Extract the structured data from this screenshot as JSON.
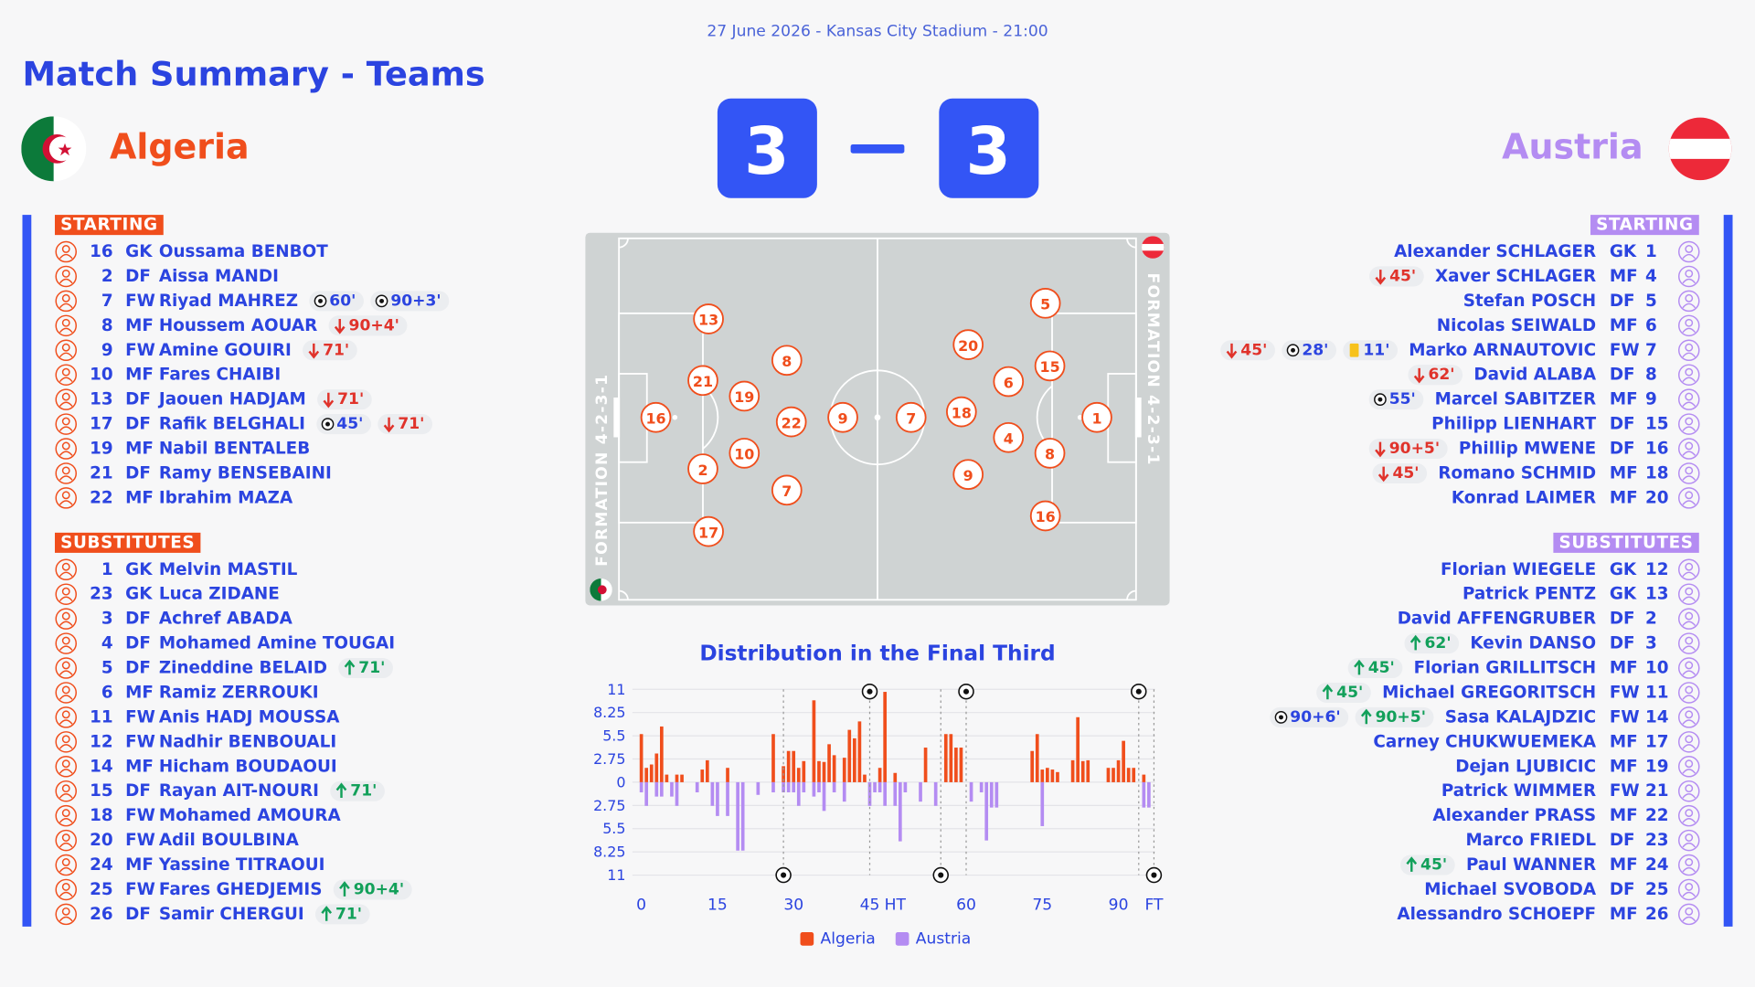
{
  "header": {
    "info": "27 June 2026 - Kansas City Stadium - 21:00",
    "title": "Match Summary - Teams"
  },
  "home": {
    "name": "Algeria",
    "score": 3,
    "starting_label": "STARTING",
    "subs_label": "SUBSTITUTES",
    "starting": [
      {
        "number": 16,
        "pos": "GK",
        "name": "Oussama BENBOT",
        "events": []
      },
      {
        "number": 2,
        "pos": "DF",
        "name": "Aissa MANDI",
        "events": []
      },
      {
        "number": 7,
        "pos": "FW",
        "name": "Riyad MAHREZ",
        "events": [
          {
            "type": "goal",
            "label": "60'"
          },
          {
            "type": "goal",
            "label": "90+3'"
          }
        ]
      },
      {
        "number": 8,
        "pos": "MF",
        "name": "Houssem AOUAR",
        "events": [
          {
            "type": "sub_off",
            "label": "90+4'"
          }
        ]
      },
      {
        "number": 9,
        "pos": "FW",
        "name": "Amine GOUIRI",
        "events": [
          {
            "type": "sub_off",
            "label": "71'"
          }
        ]
      },
      {
        "number": 10,
        "pos": "MF",
        "name": "Fares CHAIBI",
        "events": []
      },
      {
        "number": 13,
        "pos": "DF",
        "name": "Jaouen HADJAM",
        "events": [
          {
            "type": "sub_off",
            "label": "71'"
          }
        ]
      },
      {
        "number": 17,
        "pos": "DF",
        "name": "Rafik BELGHALI",
        "events": [
          {
            "type": "goal",
            "label": "45'"
          },
          {
            "type": "sub_off",
            "label": "71'"
          }
        ]
      },
      {
        "number": 19,
        "pos": "MF",
        "name": "Nabil BENTALEB",
        "events": []
      },
      {
        "number": 21,
        "pos": "DF",
        "name": "Ramy BENSEBAINI",
        "events": []
      },
      {
        "number": 22,
        "pos": "MF",
        "name": "Ibrahim MAZA",
        "events": []
      }
    ],
    "substitutes": [
      {
        "number": 1,
        "pos": "GK",
        "name": "Melvin MASTIL",
        "events": []
      },
      {
        "number": 23,
        "pos": "GK",
        "name": "Luca ZIDANE",
        "events": []
      },
      {
        "number": 3,
        "pos": "DF",
        "name": "Achref ABADA",
        "events": []
      },
      {
        "number": 4,
        "pos": "DF",
        "name": "Mohamed Amine TOUGAI",
        "events": []
      },
      {
        "number": 5,
        "pos": "DF",
        "name": "Zineddine BELAID",
        "events": [
          {
            "type": "sub_on",
            "label": "71'"
          }
        ]
      },
      {
        "number": 6,
        "pos": "MF",
        "name": "Ramiz ZERROUKI",
        "events": []
      },
      {
        "number": 11,
        "pos": "FW",
        "name": "Anis HADJ MOUSSA",
        "events": []
      },
      {
        "number": 12,
        "pos": "FW",
        "name": "Nadhir BENBOUALI",
        "events": []
      },
      {
        "number": 14,
        "pos": "MF",
        "name": "Hicham BOUDAOUI",
        "events": []
      },
      {
        "number": 15,
        "pos": "DF",
        "name": "Rayan AIT-NOURI",
        "events": [
          {
            "type": "sub_on",
            "label": "71'"
          }
        ]
      },
      {
        "number": 18,
        "pos": "FW",
        "name": "Mohamed AMOURA",
        "events": []
      },
      {
        "number": 20,
        "pos": "FW",
        "name": "Adil BOULBINA",
        "events": []
      },
      {
        "number": 24,
        "pos": "MF",
        "name": "Yassine TITRAOUI",
        "events": []
      },
      {
        "number": 25,
        "pos": "FW",
        "name": "Fares GHEDJEMIS",
        "events": [
          {
            "type": "sub_on",
            "label": "90+4'"
          }
        ]
      },
      {
        "number": 26,
        "pos": "DF",
        "name": "Samir CHERGUI",
        "events": [
          {
            "type": "sub_on",
            "label": "71'"
          }
        ]
      }
    ]
  },
  "away": {
    "name": "Austria",
    "score": 3,
    "starting_label": "STARTING",
    "subs_label": "SUBSTITUTES",
    "starting": [
      {
        "number": 1,
        "pos": "GK",
        "name": "Alexander SCHLAGER",
        "events": []
      },
      {
        "number": 4,
        "pos": "MF",
        "name": "Xaver SCHLAGER",
        "events": [
          {
            "type": "sub_off",
            "label": "45'"
          }
        ]
      },
      {
        "number": 5,
        "pos": "DF",
        "name": "Stefan POSCH",
        "events": []
      },
      {
        "number": 6,
        "pos": "MF",
        "name": "Nicolas SEIWALD",
        "events": []
      },
      {
        "number": 7,
        "pos": "FW",
        "name": "Marko ARNAUTOVIC",
        "events": [
          {
            "type": "sub_off",
            "label": "45'"
          },
          {
            "type": "goal",
            "label": "28'"
          },
          {
            "type": "yellow",
            "label": "11'"
          }
        ]
      },
      {
        "number": 8,
        "pos": "DF",
        "name": "David ALABA",
        "events": [
          {
            "type": "sub_off",
            "label": "62'"
          }
        ]
      },
      {
        "number": 9,
        "pos": "MF",
        "name": "Marcel SABITZER",
        "events": [
          {
            "type": "goal",
            "label": "55'"
          }
        ]
      },
      {
        "number": 15,
        "pos": "DF",
        "name": "Philipp LIENHART",
        "events": []
      },
      {
        "number": 16,
        "pos": "DF",
        "name": "Phillip MWENE",
        "events": [
          {
            "type": "sub_off",
            "label": "90+5'"
          }
        ]
      },
      {
        "number": 18,
        "pos": "MF",
        "name": "Romano SCHMID",
        "events": [
          {
            "type": "sub_off",
            "label": "45'"
          }
        ]
      },
      {
        "number": 20,
        "pos": "MF",
        "name": "Konrad LAIMER",
        "events": []
      }
    ],
    "substitutes": [
      {
        "number": 12,
        "pos": "GK",
        "name": "Florian WIEGELE",
        "events": []
      },
      {
        "number": 13,
        "pos": "GK",
        "name": "Patrick PENTZ",
        "events": []
      },
      {
        "number": 2,
        "pos": "DF",
        "name": "David AFFENGRUBER",
        "events": []
      },
      {
        "number": 3,
        "pos": "DF",
        "name": "Kevin DANSO",
        "events": [
          {
            "type": "sub_on",
            "label": "62'"
          }
        ]
      },
      {
        "number": 10,
        "pos": "MF",
        "name": "Florian GRILLITSCH",
        "events": [
          {
            "type": "sub_on",
            "label": "45'"
          }
        ]
      },
      {
        "number": 11,
        "pos": "FW",
        "name": "Michael GREGORITSCH",
        "events": [
          {
            "type": "sub_on",
            "label": "45'"
          }
        ]
      },
      {
        "number": 14,
        "pos": "FW",
        "name": "Sasa KALAJDZIC",
        "events": [
          {
            "type": "goal",
            "label": "90+6'"
          },
          {
            "type": "sub_on",
            "label": "90+5'"
          }
        ]
      },
      {
        "number": 17,
        "pos": "MF",
        "name": "Carney CHUKWUEMEKA",
        "events": []
      },
      {
        "number": 19,
        "pos": "MF",
        "name": "Dejan LJUBICIC",
        "events": []
      },
      {
        "number": 21,
        "pos": "FW",
        "name": "Patrick WIMMER",
        "events": []
      },
      {
        "number": 22,
        "pos": "MF",
        "name": "Alexander PRASS",
        "events": []
      },
      {
        "number": 23,
        "pos": "DF",
        "name": "Marco FRIEDL",
        "events": []
      },
      {
        "number": 24,
        "pos": "MF",
        "name": "Paul WANNER",
        "events": [
          {
            "type": "sub_on",
            "label": "45'"
          }
        ]
      },
      {
        "number": 25,
        "pos": "DF",
        "name": "Michael SVOBODA",
        "events": []
      },
      {
        "number": 26,
        "pos": "MF",
        "name": "Alessandro SCHOEPF",
        "events": []
      }
    ]
  },
  "pitch": {
    "home_formation": "FORMATION 4-2-3-1",
    "away_formation": "FORMATION 4-2-3-1",
    "home_numbers": [
      16,
      13,
      21,
      2,
      17,
      19,
      10,
      8,
      22,
      7,
      9
    ],
    "away_numbers": [
      7,
      20,
      18,
      9,
      6,
      4,
      5,
      15,
      8,
      16,
      1
    ]
  },
  "chart_data": {
    "type": "bar",
    "title": "Distribution in the Final Third",
    "xlim": [
      0,
      101
    ],
    "xticks": [
      0,
      15,
      30,
      45,
      {
        "value": 50,
        "label": "HT"
      },
      {
        "value": 64,
        "label": "60"
      },
      {
        "value": 79,
        "label": "75"
      },
      {
        "value": 94,
        "label": "90"
      },
      {
        "value": 101,
        "label": "FT"
      }
    ],
    "ylim": [
      -11,
      11
    ],
    "yticks": [
      11,
      8.25,
      5.5,
      2.75,
      0,
      {
        "value": -2.75,
        "label": "2.75"
      },
      {
        "value": -5.5,
        "label": "5.5"
      },
      {
        "value": -8.25,
        "label": "8.25"
      },
      {
        "value": -11,
        "label": "11"
      }
    ],
    "grid": true,
    "series": [
      {
        "name": "Algeria",
        "color": "#f04e1c",
        "x": [
          0,
          1,
          2,
          3,
          4,
          5,
          7,
          8,
          12,
          13,
          17,
          26,
          28,
          29,
          30,
          31,
          32,
          34,
          35,
          36,
          37,
          38,
          40,
          41,
          42,
          43,
          44,
          47,
          48,
          50,
          56,
          60,
          61,
          62,
          63,
          77,
          78,
          79,
          80,
          81,
          82,
          85,
          86,
          87,
          88,
          92,
          93,
          94,
          95,
          96,
          97,
          99
        ],
        "values": [
          5.7,
          1.7,
          2.1,
          3.4,
          6.6,
          0.9,
          0.9,
          0.9,
          1.5,
          2.6,
          1.7,
          5.7,
          1.9,
          3.7,
          3.7,
          1.7,
          2.5,
          9.7,
          2.5,
          2.4,
          4.5,
          3.2,
          2.9,
          6.2,
          5.2,
          7.2,
          0.9,
          1.7,
          10.7,
          1.1,
          4.1,
          5.7,
          5.7,
          4.1,
          4.1,
          3.7,
          5.7,
          1.5,
          1.7,
          1.5,
          1.2,
          2.6,
          7.7,
          2.5,
          2.6,
          1.7,
          1.7,
          2.6,
          4.9,
          1.7,
          1.7,
          0.9
        ]
      },
      {
        "name": "Austria",
        "color": "#b48cf2",
        "x": [
          0,
          1,
          3,
          4,
          6,
          7,
          11,
          14,
          15,
          17,
          19,
          20,
          23,
          26,
          28,
          29,
          30,
          31,
          32,
          34,
          35,
          36,
          38,
          40,
          45,
          46,
          47,
          48,
          50,
          51,
          52,
          55,
          58,
          65,
          67,
          68,
          69,
          70,
          79,
          99,
          100
        ],
        "values": [
          -1.2,
          -2.8,
          -1.7,
          -1.7,
          -1.7,
          -2.8,
          -1.2,
          -2.8,
          -4,
          -4,
          -8.1,
          -8.1,
          -1.5,
          -1.2,
          -1.2,
          -1.2,
          -1.2,
          -2.8,
          -1.2,
          -1.7,
          -1.2,
          -3.4,
          -1.2,
          -2.3,
          -2.8,
          -1.2,
          -1.2,
          -2.8,
          -2.8,
          -7,
          -1.2,
          -2.3,
          -2.8,
          -2.3,
          -1.2,
          -6.9,
          -3,
          -3,
          -5.2,
          -3,
          -3
        ]
      }
    ],
    "goals": [
      {
        "team": "home",
        "x": 45
      },
      {
        "team": "home",
        "x": 64
      },
      {
        "team": "home",
        "x": 98
      },
      {
        "team": "away",
        "x": 28
      },
      {
        "team": "away",
        "x": 59
      },
      {
        "team": "away",
        "x": 101
      }
    ]
  }
}
